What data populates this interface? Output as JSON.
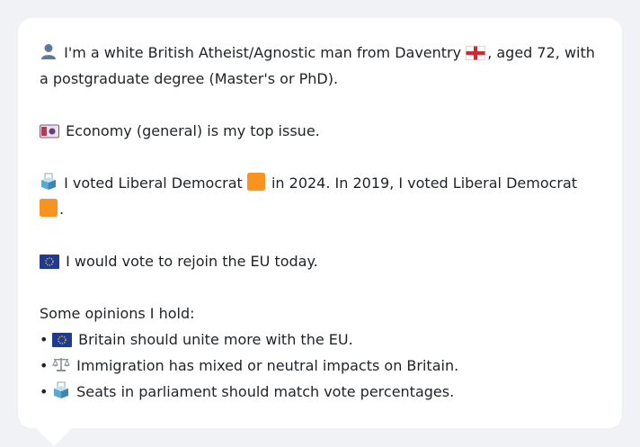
{
  "profile": {
    "intro": {
      "icon": "person-silhouette-icon",
      "text_before_flag": "I'm a white British Atheist/Agnostic man from Daventry",
      "flag_icon": "england-flag-icon",
      "text_after_flag": ", aged 72, with a postgraduate degree (Master's or PhD)."
    },
    "top_issue": {
      "icon": "banknote-icon",
      "text": "Economy (general) is my top issue."
    },
    "voting": {
      "icon": "ballot-box-icon",
      "text_part1": "I voted Liberal Democrat",
      "party_icon": "orange-square-icon",
      "text_part2": "in 2024. In 2019, I voted Liberal Democrat",
      "text_part3": ".",
      "party_color": "#f7931e"
    },
    "eu": {
      "icon": "eu-flag-icon",
      "text": "I would vote to rejoin the EU today."
    },
    "opinions": {
      "heading": "Some opinions I hold:",
      "items": [
        {
          "icon": "eu-flag-icon",
          "text": "Britain should unite more with the EU."
        },
        {
          "icon": "balance-scale-icon",
          "text": "Immigration has mixed or neutral impacts on Britain."
        },
        {
          "icon": "ballot-box-icon",
          "text": "Seats in parliament should match vote percentages."
        }
      ]
    }
  }
}
